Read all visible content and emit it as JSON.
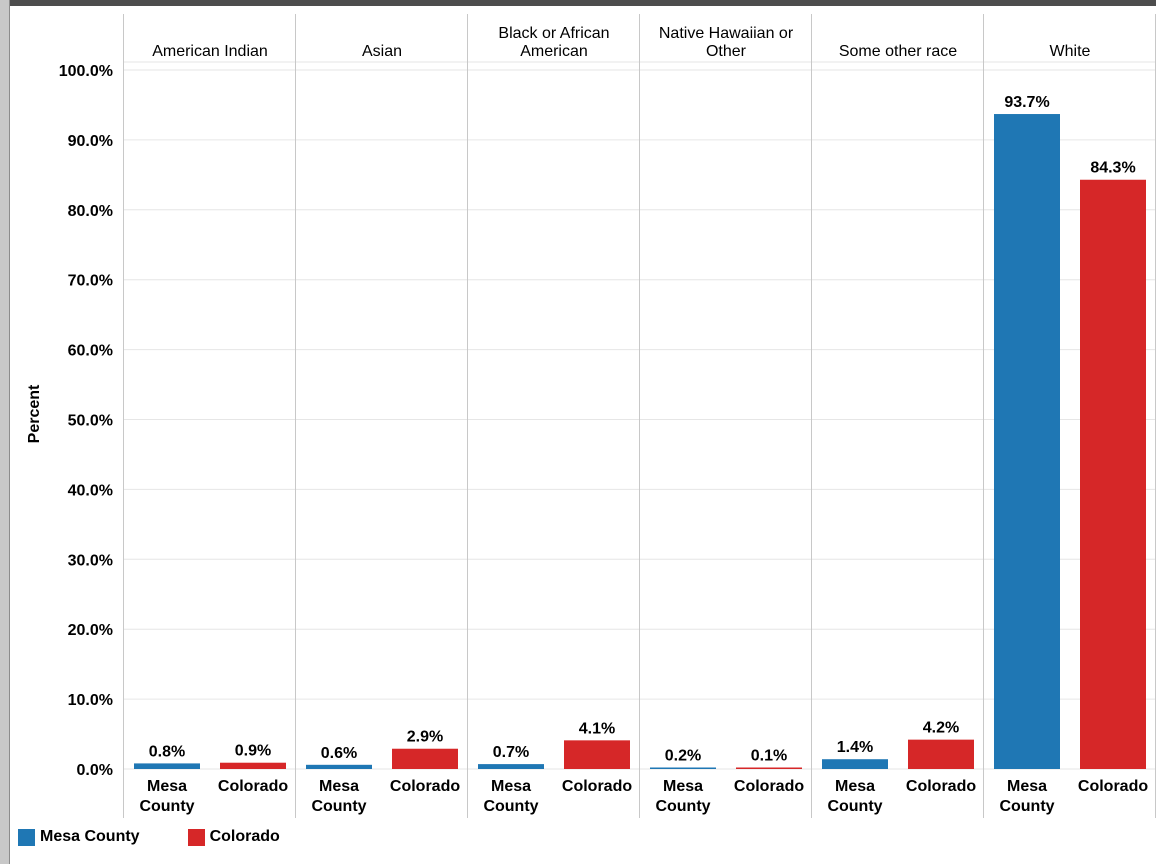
{
  "colors": {
    "mesa_county": "#1f77b4",
    "colorado": "#d62728",
    "grid": "#e6e6e6",
    "divider": "#c8c8c8"
  },
  "chart_data": {
    "type": "bar",
    "ylabel": "Percent",
    "ylim": [
      0,
      100
    ],
    "yticks": [
      "100.0%",
      "90.0%",
      "80.0%",
      "70.0%",
      "60.0%",
      "50.0%",
      "40.0%",
      "30.0%",
      "20.0%",
      "10.0%",
      "0.0%"
    ],
    "ytick_values": [
      100,
      90,
      80,
      70,
      60,
      50,
      40,
      30,
      20,
      10,
      0
    ],
    "grid": true,
    "legend_position": "bottom-left",
    "categories": [
      "American Indian",
      "Asian",
      "Black or African American",
      "Native Hawaiian or Other",
      "Some other race",
      "White"
    ],
    "category_label_lines": [
      [
        "American Indian"
      ],
      [
        "Asian"
      ],
      [
        "Black or African",
        "American"
      ],
      [
        "Native Hawaiian or",
        "Other"
      ],
      [
        "Some other race"
      ],
      [
        "White"
      ]
    ],
    "series": [
      {
        "name": "Mesa County",
        "bar_label_lines": [
          "Mesa",
          "County"
        ],
        "values": [
          0.8,
          0.6,
          0.7,
          0.2,
          1.4,
          93.7
        ],
        "value_labels": [
          "0.8%",
          "0.6%",
          "0.7%",
          "0.2%",
          "1.4%",
          "93.7%"
        ]
      },
      {
        "name": "Colorado",
        "bar_label_lines": [
          "Colorado"
        ],
        "values": [
          0.9,
          2.9,
          4.1,
          0.1,
          4.2,
          84.3
        ],
        "value_labels": [
          "0.9%",
          "2.9%",
          "4.1%",
          "0.1%",
          "4.2%",
          "84.3%"
        ]
      }
    ]
  },
  "legend": {
    "items": [
      {
        "label": "Mesa County",
        "color": "#1f77b4"
      },
      {
        "label": "Colorado",
        "color": "#d62728"
      }
    ]
  }
}
